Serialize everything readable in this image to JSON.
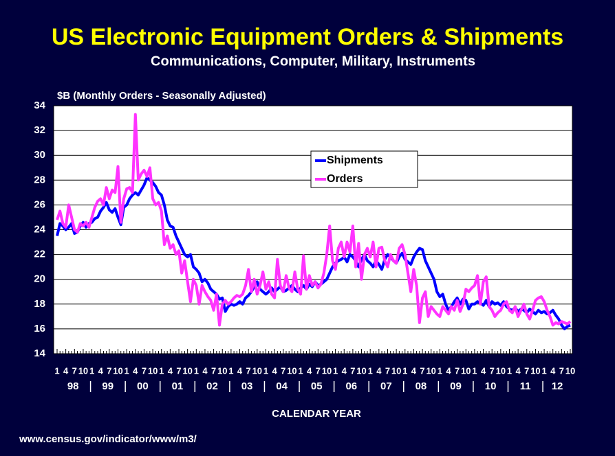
{
  "chart_data": {
    "type": "line",
    "title": "US Electronic Equipment Orders & Shipments",
    "subtitle": "Communications, Computer, Military, Instruments",
    "y_label": "$B (Monthly Orders - Seasonally Adjusted)",
    "x_label": "CALENDAR YEAR",
    "source": "www.census.gov/indicator/www/m3/",
    "categories": [
      "1",
      null,
      null,
      "4",
      null,
      null,
      "7",
      null,
      null,
      "10",
      null,
      null,
      "1",
      null,
      null,
      "4",
      null,
      null,
      "7",
      null,
      null,
      "10",
      null,
      null,
      "1",
      null,
      null,
      "4",
      null,
      null,
      "7",
      null,
      null,
      "10",
      null,
      null,
      "1",
      null,
      null,
      "4",
      null,
      null,
      "7",
      null,
      null,
      "10",
      null,
      null,
      "1",
      null,
      null,
      "4",
      null,
      null,
      "7",
      null,
      null,
      "10",
      null,
      null,
      "1",
      null,
      null,
      "4",
      null,
      null,
      "7",
      null,
      null,
      "10",
      null,
      null,
      "1",
      null,
      null,
      "4",
      null,
      null,
      "7",
      null,
      null,
      "10",
      null,
      null,
      "1",
      null,
      null,
      "4",
      null,
      null,
      "7",
      null,
      null,
      "10",
      null,
      null,
      "1",
      null,
      null,
      "4",
      null,
      null,
      "7",
      null,
      null,
      "10",
      null,
      null,
      "1",
      null,
      null,
      "4",
      null,
      null,
      "7",
      null,
      null,
      "10",
      null,
      null,
      "1",
      null,
      null,
      "4",
      null,
      null,
      "7",
      null,
      null,
      "10",
      null,
      null,
      "1",
      null,
      null,
      "4",
      null,
      null,
      "7",
      null,
      null,
      "10",
      null,
      null,
      "1",
      null,
      null,
      "4",
      null,
      null,
      "7",
      null,
      null,
      "10",
      null,
      null,
      "1",
      null,
      null,
      "4",
      null,
      null,
      "7",
      null,
      null,
      "10",
      null,
      null,
      "1",
      null,
      null,
      "4",
      null,
      null,
      "7",
      null,
      null,
      "10"
    ],
    "years": [
      "98",
      "99",
      "00",
      "01",
      "02",
      "03",
      "04",
      "05",
      "06",
      "07",
      "08",
      "09",
      "10",
      "11",
      "12"
    ],
    "series": [
      {
        "name": "Shipments",
        "color": "#0000ff",
        "values": [
          23.5,
          24.5,
          24.3,
          24.0,
          24.2,
          24.5,
          23.7,
          23.8,
          24.3,
          24.6,
          24.2,
          24.5,
          24.6,
          24.9,
          25.0,
          25.5,
          25.8,
          26.2,
          25.6,
          25.4,
          25.7,
          25.0,
          24.4,
          25.8,
          26.0,
          26.5,
          26.8,
          27.0,
          26.8,
          27.2,
          27.6,
          28.2,
          28.0,
          27.8,
          27.5,
          27.0,
          26.8,
          26.0,
          24.8,
          24.3,
          24.2,
          23.5,
          23.0,
          22.5,
          22.0,
          21.8,
          22.0,
          21.0,
          20.8,
          20.5,
          19.8,
          20.0,
          19.7,
          19.2,
          19.0,
          18.8,
          18.4,
          18.5,
          17.4,
          17.8,
          18.0,
          17.9,
          18.0,
          18.2,
          18.0,
          18.5,
          18.7,
          19.0,
          19.4,
          19.8,
          19.2,
          19.0,
          18.8,
          19.0,
          19.3,
          19.0,
          19.2,
          19.4,
          19.0,
          19.1,
          19.3,
          19.5,
          19.2,
          19.0,
          19.3,
          19.5,
          19.2,
          19.6,
          19.4,
          19.8,
          19.5,
          19.6,
          19.8,
          20.0,
          20.5,
          21.0,
          21.3,
          21.5,
          21.6,
          21.8,
          21.4,
          22.0,
          21.8,
          21.5,
          21.0,
          21.6,
          22.0,
          21.5,
          21.3,
          21.0,
          21.5,
          21.2,
          20.8,
          21.6,
          22.0,
          21.8,
          21.5,
          21.3,
          21.8,
          22.1,
          21.6,
          21.4,
          21.2,
          21.8,
          22.2,
          22.5,
          22.4,
          21.5,
          21.0,
          20.5,
          20.0,
          19.0,
          18.6,
          18.8,
          18.0,
          17.5,
          17.8,
          18.2,
          18.5,
          18.0,
          18.4,
          18.3,
          17.6,
          18.0,
          18.0,
          18.2,
          18.1,
          17.9,
          18.3,
          17.8,
          18.2,
          18.0,
          18.1,
          17.9,
          18.2,
          17.8,
          17.6,
          17.5,
          17.7,
          17.4,
          17.6,
          17.5,
          17.3,
          17.6,
          17.4,
          17.2,
          17.5,
          17.3,
          17.4,
          17.2,
          17.3,
          17.5,
          17.1,
          16.8,
          16.3,
          16.0,
          16.2,
          16.3
        ]
      },
      {
        "name": "Orders",
        "color": "#ff33ff",
        "values": [
          24.8,
          25.5,
          24.5,
          24.2,
          26.0,
          25.0,
          24.0,
          23.8,
          24.5,
          24.3,
          24.6,
          24.2,
          25.0,
          25.8,
          26.3,
          26.5,
          26.0,
          27.4,
          26.5,
          27.2,
          27.0,
          29.1,
          24.6,
          26.5,
          27.3,
          27.4,
          27.0,
          33.3,
          28.0,
          28.5,
          28.8,
          28.3,
          29.0,
          26.5,
          26.0,
          26.2,
          25.5,
          22.8,
          23.5,
          22.5,
          22.8,
          22.0,
          22.3,
          20.5,
          21.5,
          19.8,
          18.2,
          20.0,
          19.5,
          18.0,
          19.5,
          19.0,
          18.6,
          18.3,
          17.5,
          18.8,
          16.3,
          18.0,
          18.3,
          18.0,
          18.2,
          18.5,
          18.7,
          18.6,
          18.8,
          19.5,
          20.8,
          19.0,
          20.0,
          18.8,
          19.5,
          20.6,
          19.2,
          19.8,
          18.8,
          18.5,
          21.6,
          19.5,
          19.0,
          20.3,
          19.3,
          19.0,
          20.6,
          19.2,
          18.8,
          21.9,
          19.2,
          20.3,
          19.5,
          19.8,
          19.3,
          19.6,
          20.5,
          22.0,
          24.3,
          21.5,
          20.8,
          22.5,
          23.0,
          21.8,
          23.0,
          22.2,
          24.3,
          21.0,
          22.9,
          20.0,
          22.0,
          22.5,
          21.8,
          23.0,
          21.0,
          22.5,
          22.6,
          21.5,
          21.0,
          22.0,
          21.5,
          21.3,
          22.5,
          22.8,
          22.0,
          20.5,
          19.0,
          20.8,
          19.5,
          16.5,
          18.5,
          19.0,
          17.0,
          17.8,
          17.5,
          17.2,
          17.0,
          17.8,
          17.5,
          17.2,
          17.8,
          17.5,
          18.3,
          17.4,
          18.0,
          19.2,
          19.0,
          19.3,
          19.5,
          20.3,
          18.0,
          19.8,
          20.2,
          17.8,
          17.5,
          17.0,
          17.3,
          17.5,
          18.0,
          18.2,
          17.5,
          17.3,
          17.8,
          17.0,
          17.5,
          18.0,
          17.2,
          16.8,
          17.5,
          18.3,
          18.5,
          18.6,
          18.2,
          17.5,
          17.0,
          16.3,
          16.5,
          16.4,
          16.6,
          16.5,
          16.4,
          16.6
        ]
      }
    ],
    "ylim": [
      14,
      34
    ],
    "yticks": [
      14,
      16,
      18,
      20,
      22,
      24,
      26,
      28,
      30,
      32,
      34
    ],
    "grid": true
  }
}
